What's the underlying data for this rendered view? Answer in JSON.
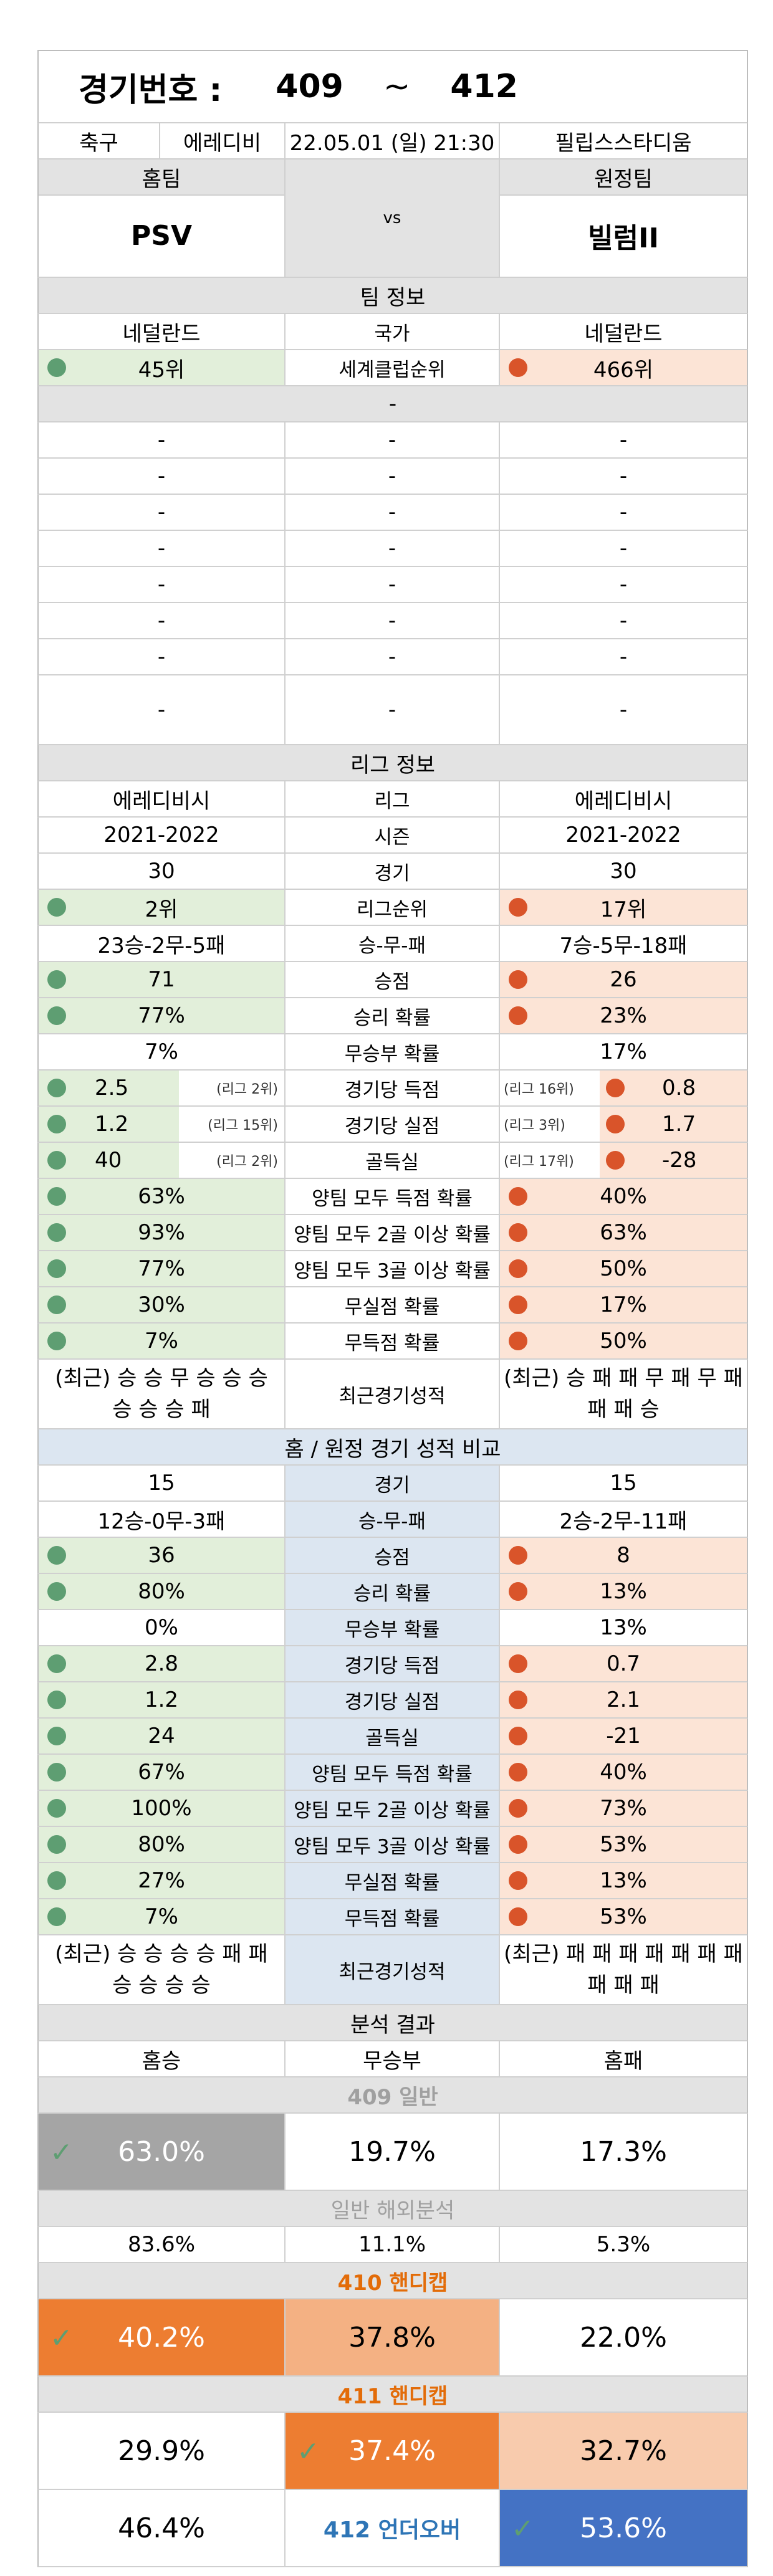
{
  "header": {
    "label": "경기번호 :",
    "from": "409",
    "tilde": "~",
    "to": "412"
  },
  "match": {
    "sport": "축구",
    "league": "에레디비",
    "datetime": "22.05.01 (일) 21:30",
    "stadium": "필립스스타디움"
  },
  "teams": {
    "home_label": "홈팀",
    "away_label": "원정팀",
    "home": "PSV",
    "vs": "vs",
    "away": "빌럼II"
  },
  "team_info": {
    "title": "팀 정보",
    "country_label": "국가",
    "home_country": "네덜란드",
    "away_country": "네덜란드",
    "rank_label": "세계클럽순위",
    "home_rank": "45위",
    "away_rank": "466위",
    "blank_header": "-",
    "dash": "-"
  },
  "league_info": {
    "title": "리그 정보",
    "rows": [
      {
        "label": "리그",
        "home": "에레디비시",
        "away": "에레디비시"
      },
      {
        "label": "시즌",
        "home": "2021-2022",
        "away": "2021-2022"
      },
      {
        "label": "경기",
        "home": "30",
        "away": "30"
      },
      {
        "label": "리그순위",
        "home": "2위",
        "away": "17위"
      },
      {
        "label": "승-무-패",
        "home": "23승-2무-5패",
        "away": "7승-5무-18패"
      },
      {
        "label": "승점",
        "home": "71",
        "away": "26"
      },
      {
        "label": "승리 확률",
        "home": "77%",
        "away": "23%"
      },
      {
        "label": "무승부 확률",
        "home": "7%",
        "away": "17%"
      },
      {
        "label": "경기당 득점",
        "home": "2.5",
        "home_rank": "(리그 2위)",
        "away": "0.8",
        "away_rank": "(리그 16위)"
      },
      {
        "label": "경기당 실점",
        "home": "1.2",
        "home_rank": "(리그 15위)",
        "away": "1.7",
        "away_rank": "(리그 3위)"
      },
      {
        "label": "골득실",
        "home": "40",
        "home_rank": "(리그 2위)",
        "away": "-28",
        "away_rank": "(리그 17위)"
      },
      {
        "label": "양팀 모두 득점 확률",
        "home": "63%",
        "away": "40%"
      },
      {
        "label": "양팀 모두 2골 이상 확률",
        "home": "93%",
        "away": "63%"
      },
      {
        "label": "양팀 모두 3골 이상 확률",
        "home": "77%",
        "away": "50%"
      },
      {
        "label": "무실점 확률",
        "home": "30%",
        "away": "17%"
      },
      {
        "label": "무득점 확률",
        "home": "7%",
        "away": "50%"
      }
    ],
    "recent_label": "최근경기성적",
    "home_recent": "(최근) 승 승 무 승 승 승 승 승 승 패",
    "away_recent": "(최근) 승 패 패 무 패 무 패 패 패 승"
  },
  "ha_compare": {
    "title": "홈 / 원정 경기 성적 비교",
    "rows": [
      {
        "label": "경기",
        "home": "15",
        "away": "15"
      },
      {
        "label": "승-무-패",
        "home": "12승-0무-3패",
        "away": "2승-2무-11패"
      },
      {
        "label": "승점",
        "home": "36",
        "away": "8"
      },
      {
        "label": "승리 확률",
        "home": "80%",
        "away": "13%"
      },
      {
        "label": "무승부 확률",
        "home": "0%",
        "away": "13%"
      },
      {
        "label": "경기당 득점",
        "home": "2.8",
        "away": "0.7"
      },
      {
        "label": "경기당 실점",
        "home": "1.2",
        "away": "2.1"
      },
      {
        "label": "골득실",
        "home": "24",
        "away": "-21"
      },
      {
        "label": "양팀 모두 득점 확률",
        "home": "67%",
        "away": "40%"
      },
      {
        "label": "양팀 모두 2골 이상 확률",
        "home": "100%",
        "away": "73%"
      },
      {
        "label": "양팀 모두 3골 이상 확률",
        "home": "80%",
        "away": "53%"
      },
      {
        "label": "무실점 확률",
        "home": "27%",
        "away": "13%"
      },
      {
        "label": "무득점 확률",
        "home": "7%",
        "away": "53%"
      }
    ],
    "recent_label": "최근경기성적",
    "home_recent": "(최근) 승 승 승 승 패 패 승 승 승 승",
    "away_recent": "(최근) 패 패 패 패 패 패 패 패 패 패"
  },
  "analysis": {
    "title": "분석 결과",
    "cols": {
      "home_win": "홈승",
      "draw": "무승부",
      "home_loss": "홈패"
    },
    "g409_label": "409 일반",
    "g409": {
      "home": "63.0%",
      "draw": "19.7%",
      "away": "17.3%"
    },
    "overseas_label": "일반 해외분석",
    "overseas": {
      "home": "83.6%",
      "draw": "11.1%",
      "away": "5.3%"
    },
    "g410_label": "410 핸디캡",
    "g410": {
      "home": "40.2%",
      "draw": "37.8%",
      "away": "22.0%"
    },
    "g411_label": "411 핸디캡",
    "g411": {
      "home": "29.9%",
      "draw": "37.4%",
      "away": "32.7%"
    },
    "g412": {
      "under": "46.4%",
      "label": "412 언더오버",
      "over": "53.6%"
    }
  },
  "colors": {
    "green_dot": "#5e9e72",
    "orange_dot": "#d9542a",
    "orange_fill": "#ed7d31",
    "blue_fill": "#4472c4",
    "gray_fill": "#a5a5a5",
    "label_orange": "#e36c09",
    "label_blue": "#2e75b6"
  }
}
